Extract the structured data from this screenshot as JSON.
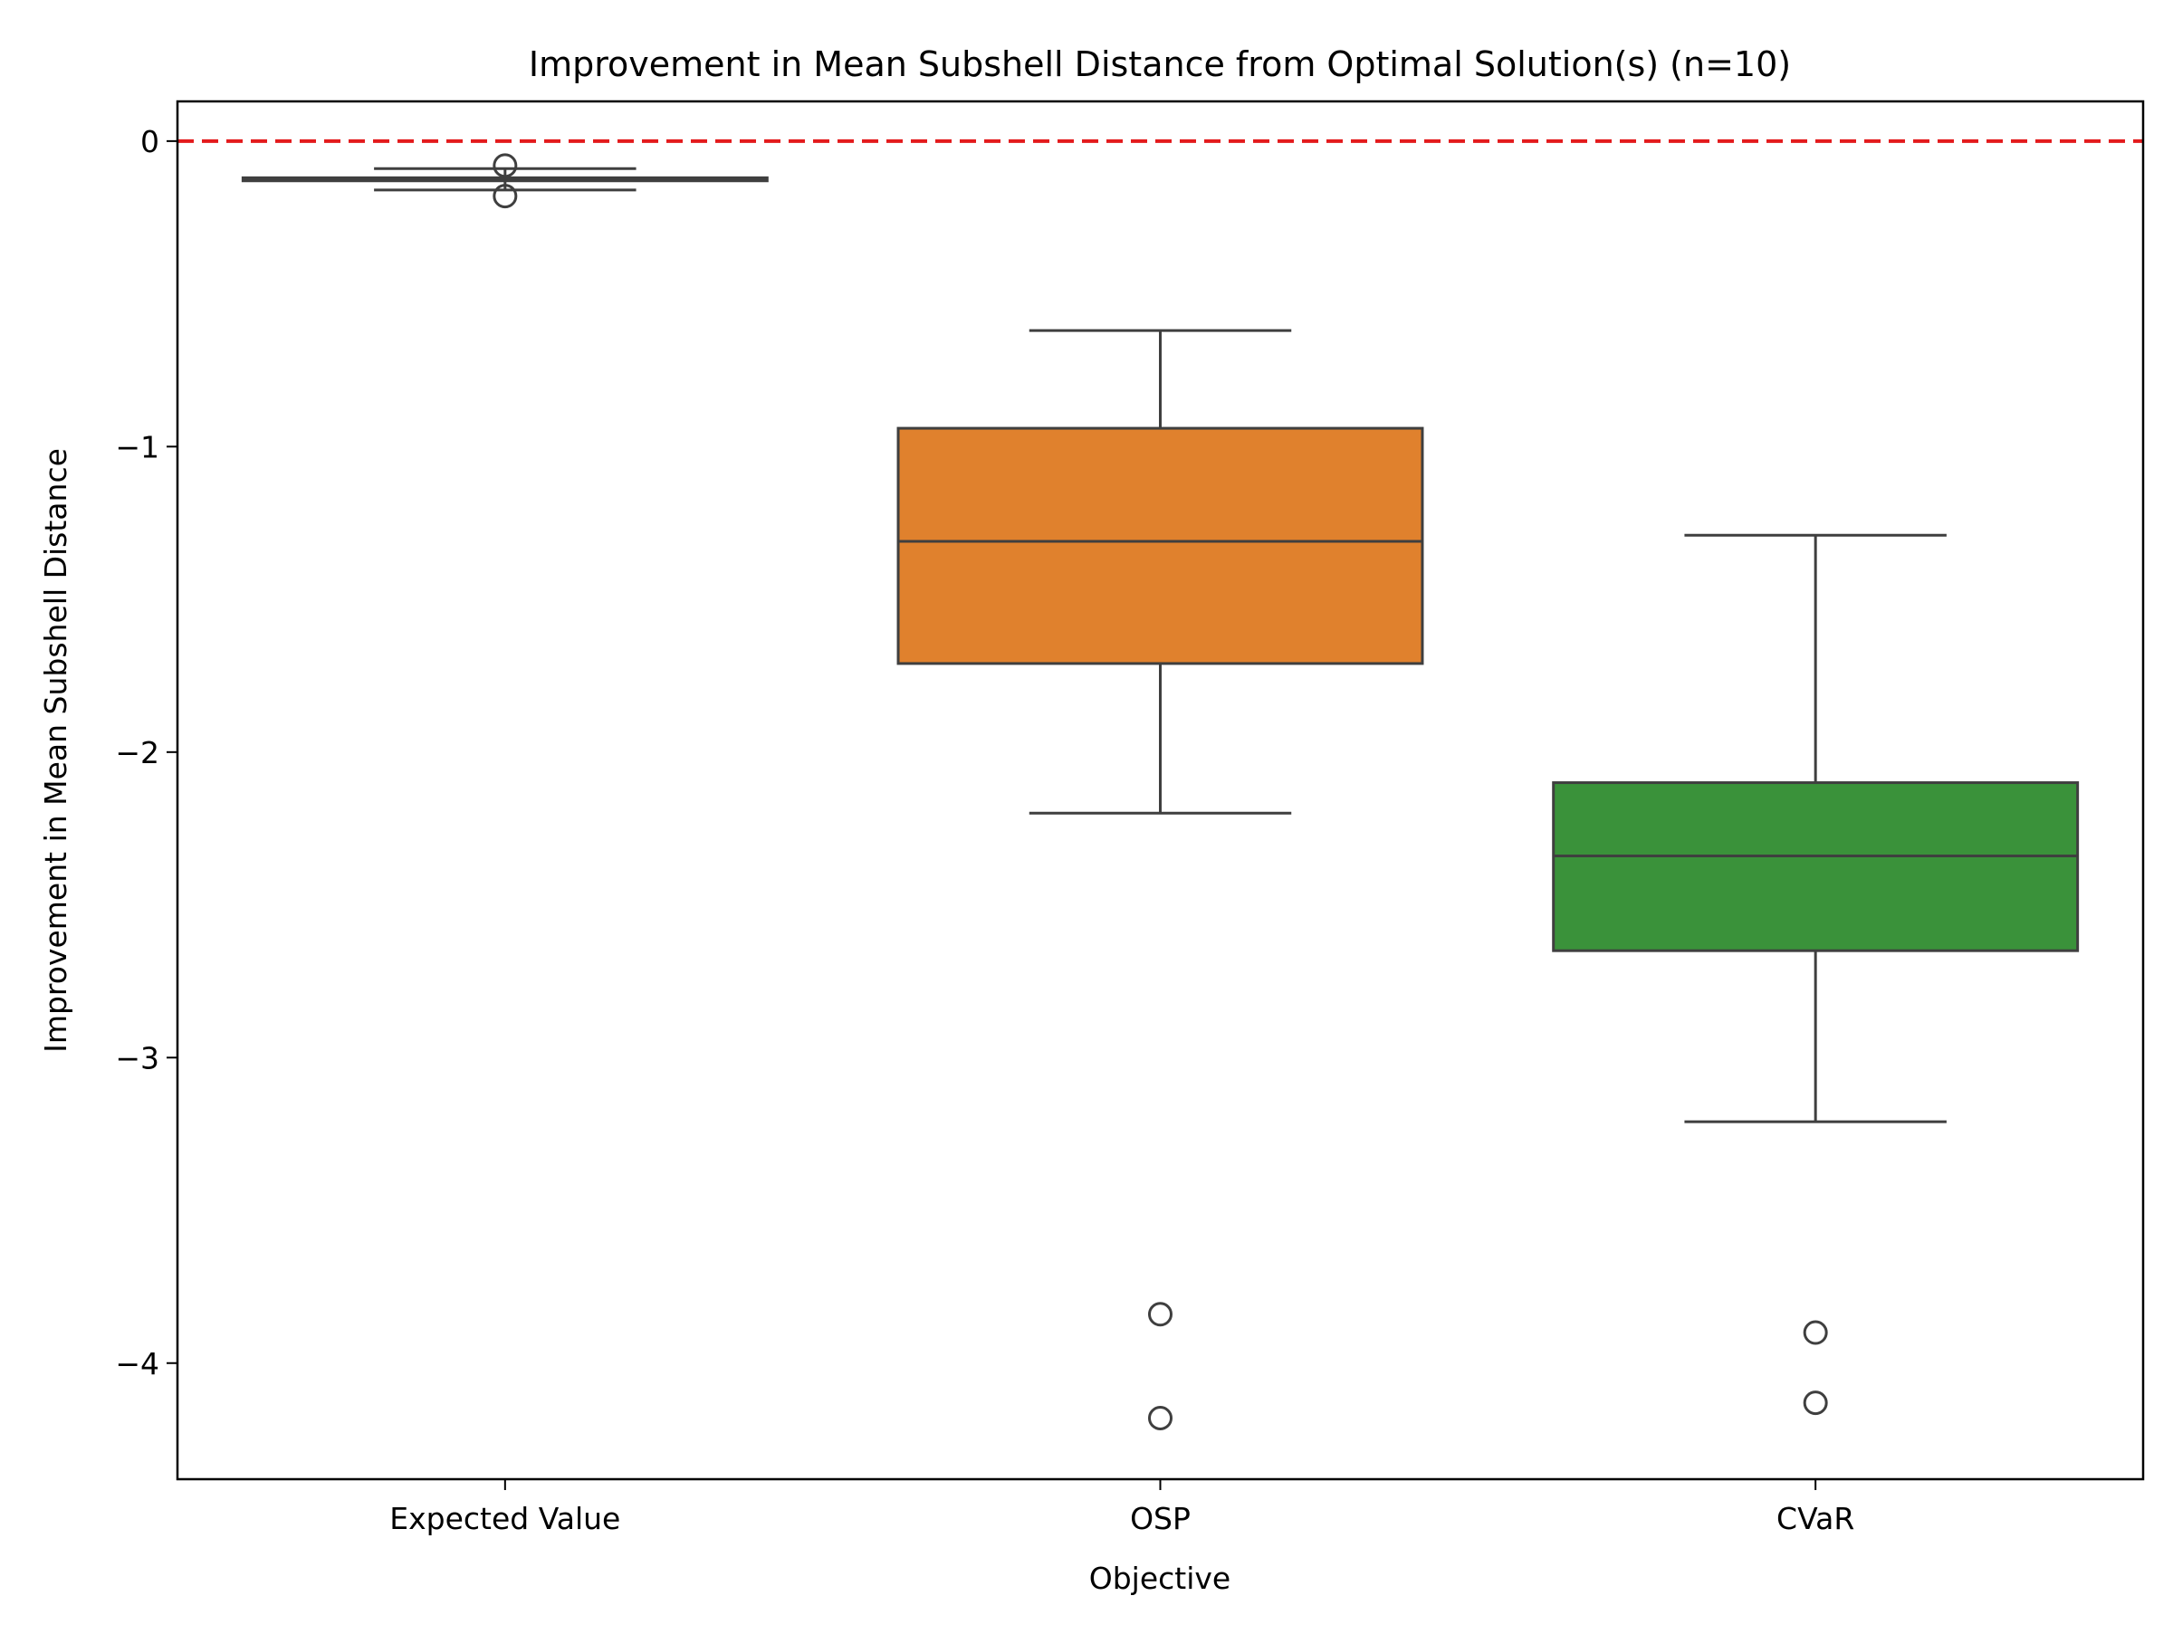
{
  "chart_data": {
    "type": "box",
    "title": "Improvement in Mean Subshell Distance from Optimal Solution(s) (n=10)",
    "xlabel": "Objective",
    "ylabel": "Improvement in Mean Subshell Distance",
    "ylim": [
      -4.38,
      0.13
    ],
    "yticks": [
      0,
      -1,
      -2,
      -3,
      -4
    ],
    "ytick_labels": [
      "0",
      "−1",
      "−2",
      "−3",
      "−4"
    ],
    "reference_line": {
      "y": 0,
      "color": "#e31a1c",
      "style": "dashed"
    },
    "categories": [
      "Expected Value",
      "OSP",
      "CVaR"
    ],
    "boxes": [
      {
        "category": "Expected Value",
        "color": "#1f77b4",
        "whisker_low": -0.16,
        "q1": -0.13,
        "median": -0.125,
        "q3": -0.12,
        "whisker_high": -0.09,
        "outliers": [
          -0.08,
          -0.18
        ]
      },
      {
        "category": "OSP",
        "color": "#e0812d",
        "whisker_low": -2.2,
        "q1": -1.71,
        "median": -1.31,
        "q3": -0.94,
        "whisker_high": -0.62,
        "outliers": [
          -3.84,
          -4.18
        ]
      },
      {
        "category": "CVaR",
        "color": "#3a923a",
        "whisker_low": -3.21,
        "q1": -2.65,
        "median": -2.34,
        "q3": -2.1,
        "whisker_high": -1.29,
        "outliers": [
          -3.9,
          -4.13
        ]
      }
    ]
  }
}
